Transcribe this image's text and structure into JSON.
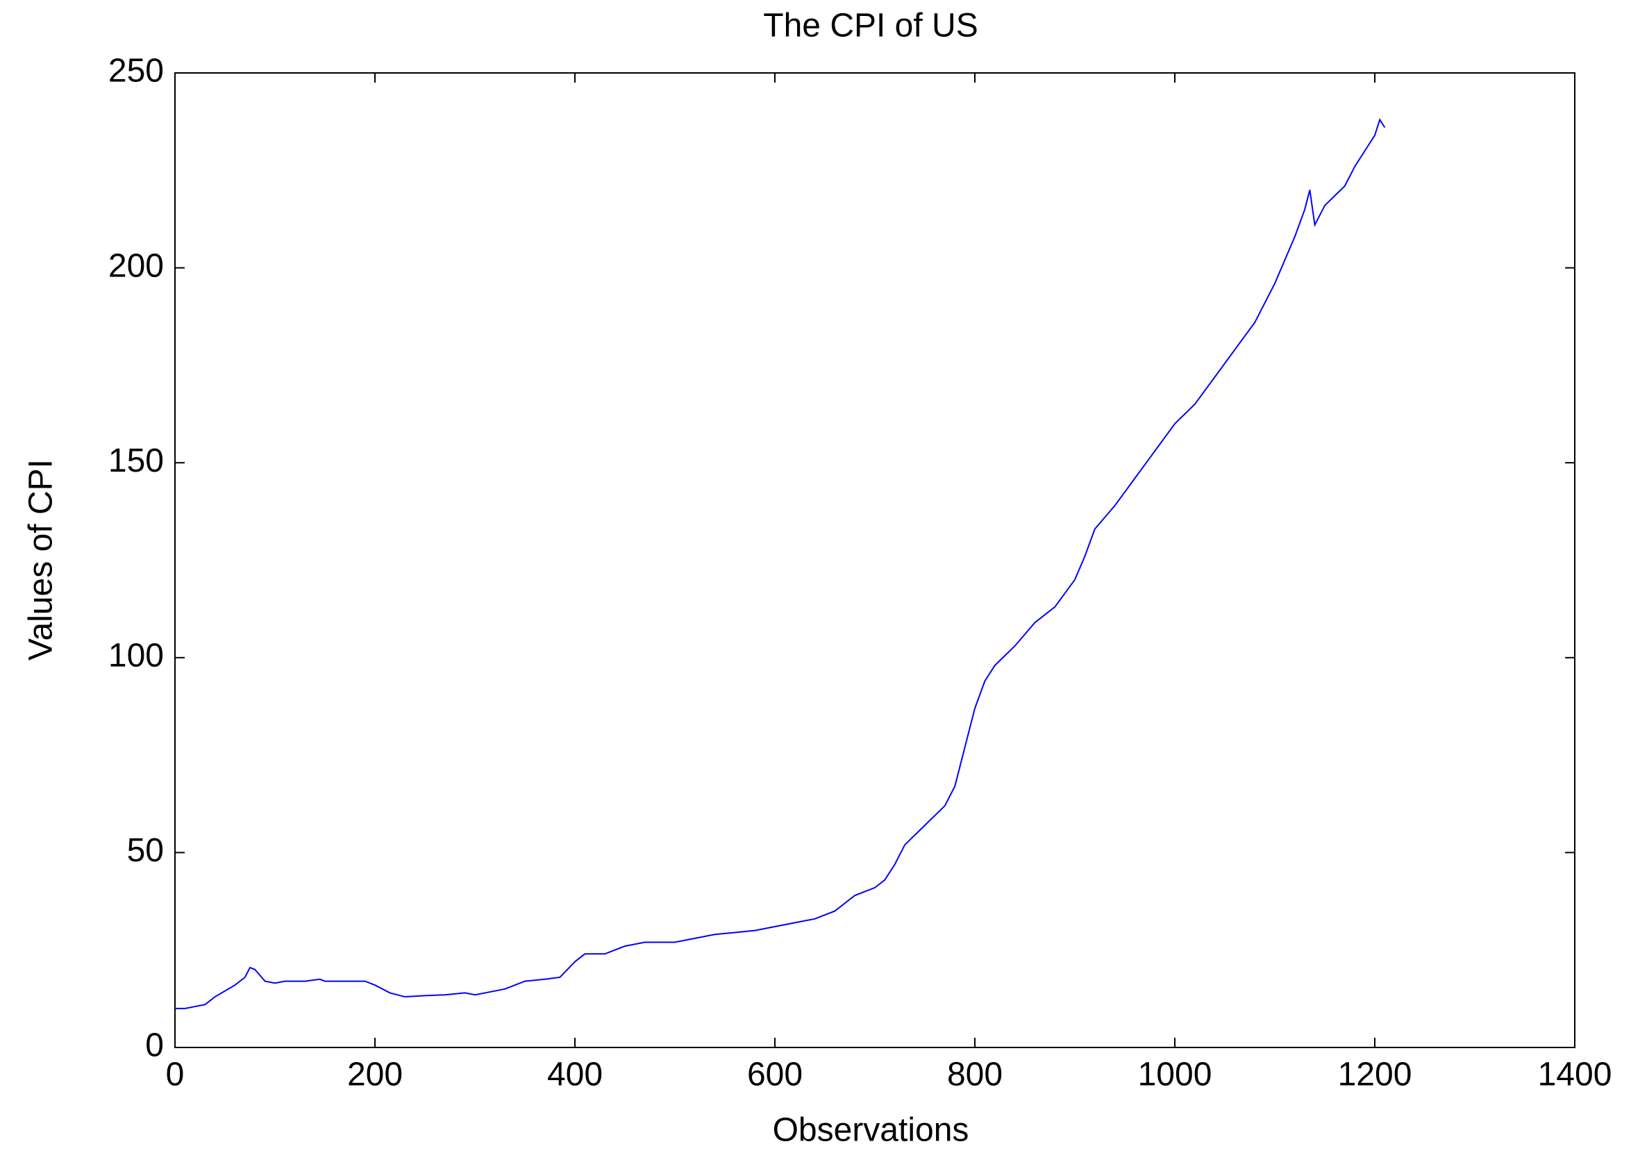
{
  "chart_data": {
    "type": "line",
    "title": "The CPI of US",
    "x_label": "Observations",
    "y_label": "Values of CPI",
    "xlim": [
      0,
      1400
    ],
    "xticks": [
      0,
      200,
      400,
      600,
      800,
      1000,
      1200,
      1400
    ],
    "ylim": [
      0,
      250
    ],
    "yticks": [
      0,
      50,
      100,
      150,
      200,
      250
    ],
    "grid": false,
    "series": [
      {
        "color": "#0000ff",
        "x": [
          0,
          10,
          20,
          30,
          40,
          50,
          60,
          70,
          75,
          80,
          90,
          100,
          110,
          130,
          145,
          150,
          170,
          190,
          200,
          215,
          230,
          250,
          270,
          290,
          300,
          310,
          330,
          350,
          370,
          385,
          400,
          410,
          420,
          430,
          450,
          470,
          500,
          520,
          540,
          560,
          580,
          600,
          620,
          640,
          660,
          680,
          700,
          710,
          720,
          730,
          750,
          770,
          780,
          790,
          800,
          810,
          820,
          840,
          860,
          880,
          900,
          910,
          920,
          940,
          960,
          980,
          1000,
          1020,
          1040,
          1060,
          1080,
          1100,
          1110,
          1120,
          1130,
          1135,
          1140,
          1150,
          1170,
          1180,
          1190,
          1200,
          1205,
          1210
        ],
        "values": [
          10,
          10,
          10.5,
          11,
          13,
          14.5,
          16,
          18,
          20.5,
          20,
          17,
          16.5,
          17,
          17,
          17.5,
          17,
          17,
          17,
          16,
          14,
          13,
          13.3,
          13.5,
          14,
          13.5,
          14,
          15,
          17,
          17.5,
          18,
          22,
          24,
          24,
          24,
          26,
          27,
          27,
          28,
          29,
          29.5,
          30,
          31,
          32,
          33,
          35,
          39,
          41,
          43,
          47,
          52,
          57,
          62,
          67,
          77,
          87,
          94,
          98,
          103,
          109,
          113,
          120,
          126,
          133,
          139,
          146,
          153,
          160,
          165,
          172,
          179,
          186,
          196,
          202,
          208,
          215,
          220,
          211,
          216,
          221,
          226,
          230,
          234,
          238,
          236
        ]
      }
    ]
  }
}
